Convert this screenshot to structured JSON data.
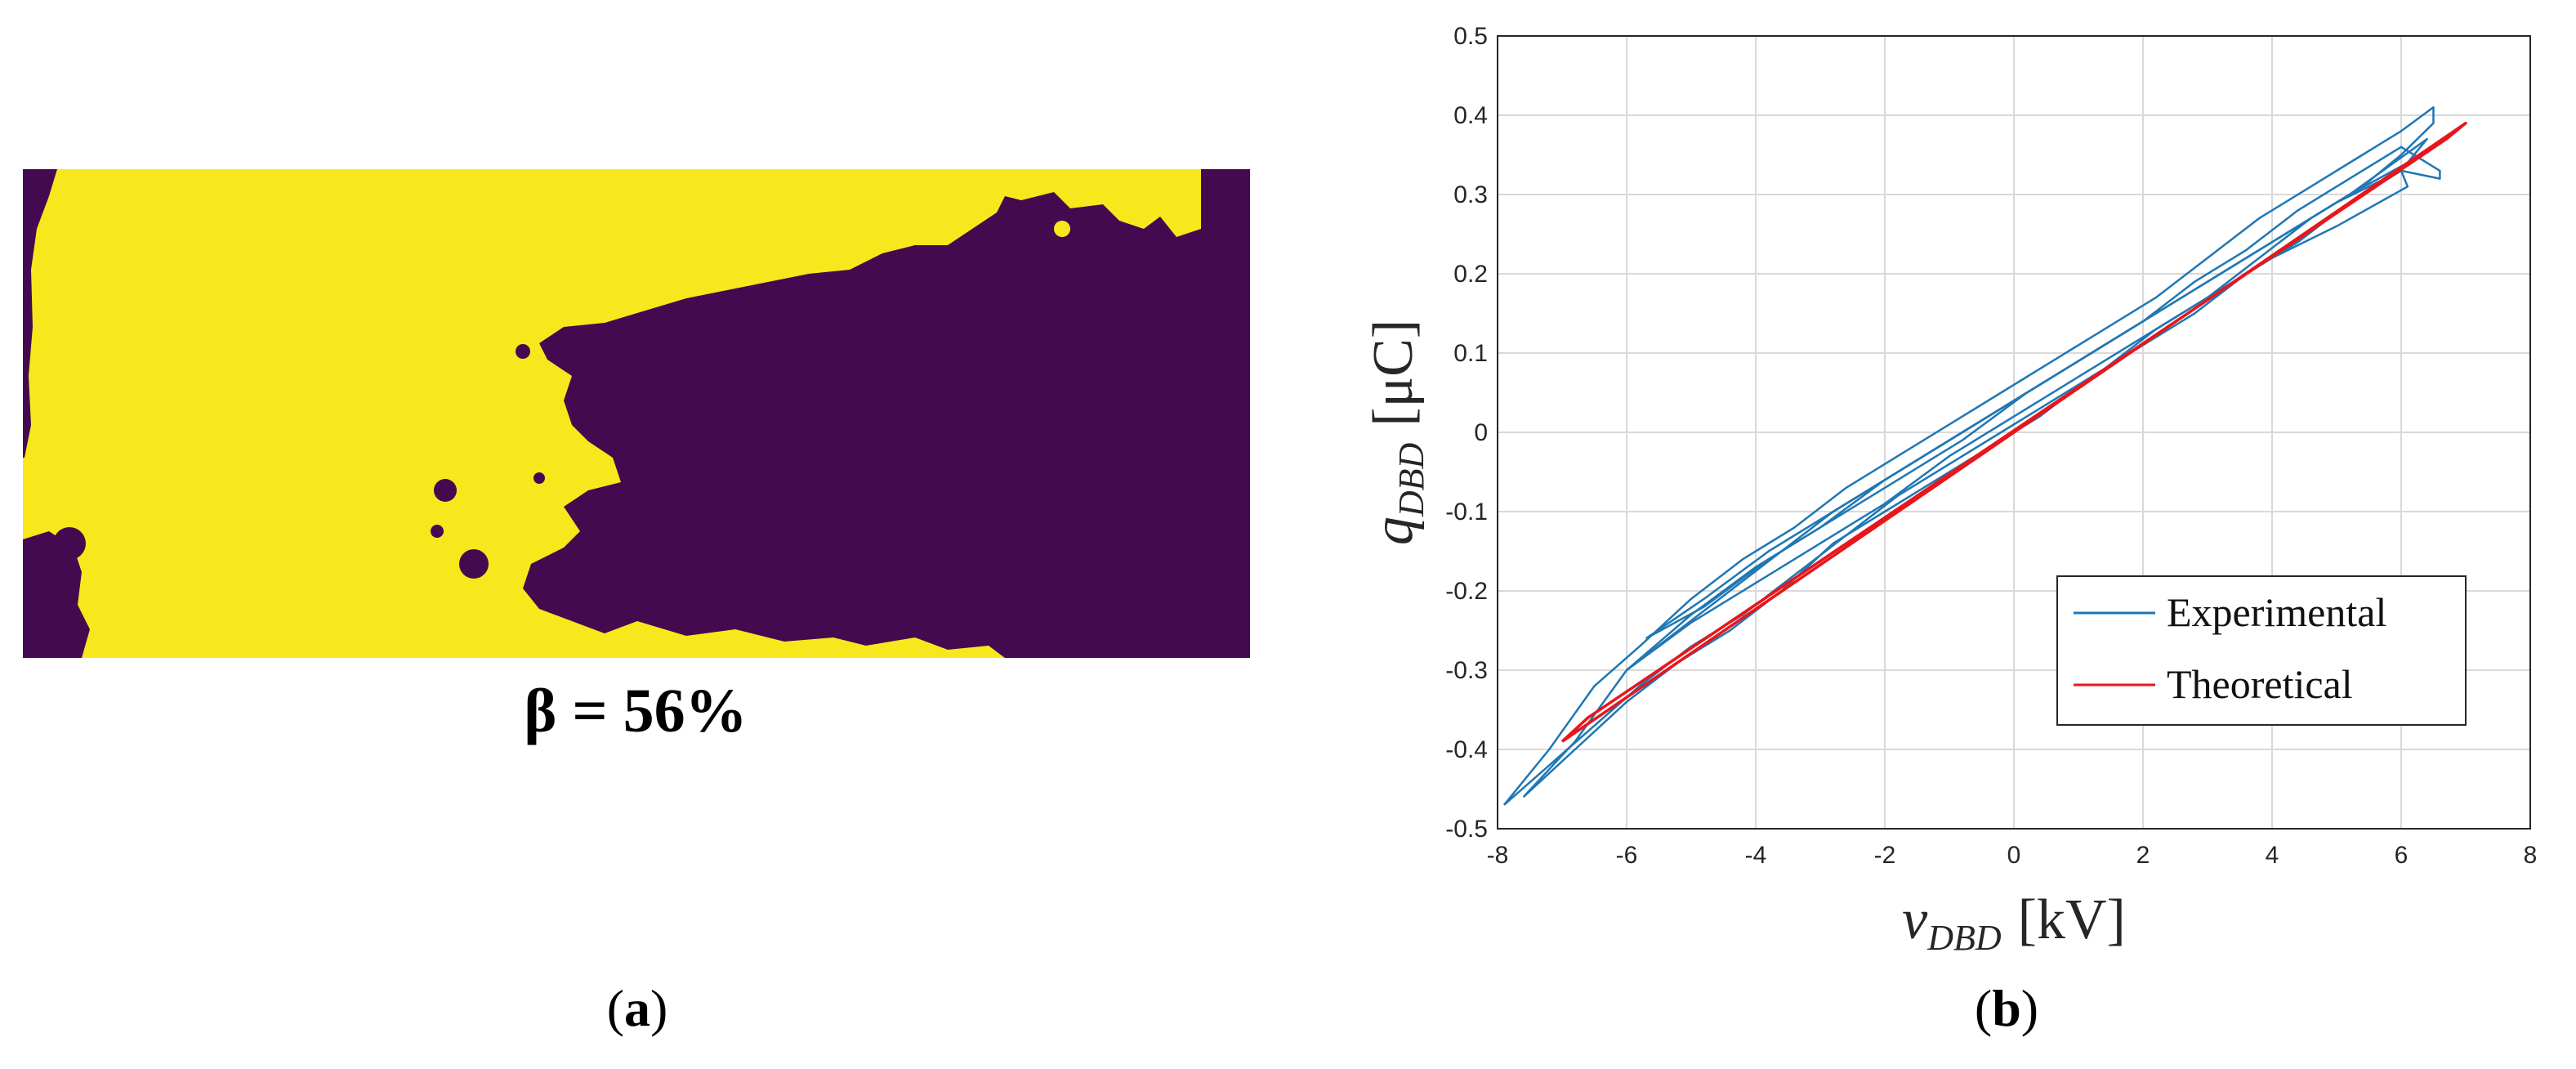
{
  "colors": {
    "mask_yellow": "#f8e71c",
    "mask_purple": "#440a4f",
    "experimental": "#1f77b4",
    "theoretical": "#e8161b",
    "grid": "#d9d9d9",
    "axis": "#262626"
  },
  "panel_a": {
    "beta_label": "β = 56%",
    "caption_open": "(",
    "caption_letter": "a",
    "caption_close": ")"
  },
  "panel_b": {
    "caption_open": "(",
    "caption_letter": "b",
    "caption_close": ")"
  },
  "chart_data": {
    "type": "line",
    "xlabel": "v_{DBD} [kV]",
    "ylabel": "q_{DBD} [μC]",
    "xlabel_main": "v",
    "xlabel_sub": "DBD",
    "xlabel_unit": "[kV]",
    "ylabel_main": "q",
    "ylabel_sub": "DBD",
    "ylabel_unit": "[μC]",
    "xlim": [
      -8,
      8
    ],
    "ylim": [
      -0.5,
      0.5
    ],
    "xticks": [
      -8,
      -6,
      -4,
      -2,
      0,
      2,
      4,
      6,
      8
    ],
    "yticks": [
      -0.5,
      -0.4,
      -0.3,
      -0.2,
      -0.1,
      0,
      0.1,
      0.2,
      0.3,
      0.4,
      0.5
    ],
    "xtick_labels": [
      "-8",
      "-6",
      "-4",
      "-2",
      "0",
      "2",
      "4",
      "6",
      "8"
    ],
    "ytick_labels": [
      "-0.5",
      "-0.4",
      "-0.3",
      "-0.2",
      "-0.1",
      "0",
      "0.1",
      "0.2",
      "0.3",
      "0.4",
      "0.5"
    ],
    "grid": true,
    "legend_position": "lower-right",
    "series": [
      {
        "name": "Experimental",
        "color": "#1f77b4",
        "loops": [
          {
            "x": [
              -7.9,
              -7.2,
              -6.5,
              -5.8,
              -5.0,
              -4.2,
              -3.4,
              -2.6,
              -1.8,
              -1.0,
              -0.2,
              0.6,
              1.4,
              2.2,
              3.0,
              3.8,
              4.6,
              5.4,
              6.0,
              6.5,
              6.5,
              6.0,
              5.4,
              4.6,
              3.8,
              3.0,
              2.2,
              1.4,
              0.6,
              -0.2,
              -1.0,
              -1.8,
              -2.6,
              -3.4,
              -4.2,
              -5.0,
              -5.8,
              -6.5,
              -7.2,
              -7.9
            ],
            "y": [
              -0.47,
              -0.4,
              -0.32,
              -0.27,
              -0.21,
              -0.16,
              -0.12,
              -0.07,
              -0.03,
              0.01,
              0.05,
              0.09,
              0.13,
              0.17,
              0.22,
              0.27,
              0.31,
              0.35,
              0.38,
              0.41,
              0.39,
              0.35,
              0.31,
              0.27,
              0.22,
              0.17,
              0.13,
              0.08,
              0.04,
              0.0,
              -0.04,
              -0.08,
              -0.13,
              -0.18,
              -0.23,
              -0.27,
              -0.32,
              -0.37,
              -0.42,
              -0.47
            ]
          },
          {
            "x": [
              -7.6,
              -6.8,
              -6.0,
              -5.2,
              -4.4,
              -3.6,
              -2.8,
              -2.0,
              -1.2,
              -0.4,
              0.4,
              1.2,
              2.0,
              2.8,
              3.6,
              4.4,
              5.2,
              6.0,
              6.6,
              6.6,
              6.0,
              5.2,
              4.4,
              3.6,
              2.8,
              2.0,
              1.2,
              0.4,
              -0.4,
              -1.2,
              -2.0,
              -2.8,
              -3.6,
              -4.4,
              -5.2,
              -6.0,
              -6.8,
              -7.6
            ],
            "y": [
              -0.46,
              -0.39,
              -0.3,
              -0.25,
              -0.2,
              -0.15,
              -0.1,
              -0.06,
              -0.02,
              0.02,
              0.06,
              0.1,
              0.14,
              0.19,
              0.23,
              0.28,
              0.32,
              0.36,
              0.33,
              0.32,
              0.33,
              0.29,
              0.24,
              0.2,
              0.15,
              0.11,
              0.07,
              0.02,
              -0.02,
              -0.06,
              -0.1,
              -0.14,
              -0.2,
              -0.25,
              -0.29,
              -0.34,
              -0.4,
              -0.46
            ]
          },
          {
            "x": [
              -6.0,
              -5.0,
              -4.0,
              -3.0,
              -2.0,
              -1.0,
              0.0,
              1.0,
              2.0,
              3.0,
              4.0,
              5.0,
              6.0,
              6.1,
              5.0,
              4.0,
              3.0,
              2.0,
              1.0,
              0.0,
              -1.0,
              -2.0,
              -3.0,
              -4.0,
              -5.0,
              -6.0
            ],
            "y": [
              -0.3,
              -0.23,
              -0.17,
              -0.12,
              -0.06,
              -0.01,
              0.04,
              0.09,
              0.14,
              0.19,
              0.24,
              0.29,
              0.33,
              0.31,
              0.26,
              0.22,
              0.17,
              0.12,
              0.07,
              0.02,
              -0.03,
              -0.09,
              -0.14,
              -0.19,
              -0.24,
              -0.3
            ]
          },
          {
            "x": [
              -5.7,
              -4.8,
              -3.8,
              -2.8,
              -1.8,
              -0.8,
              0.2,
              1.2,
              2.2,
              3.2,
              4.2,
              5.2,
              6.1,
              6.4,
              5.2,
              4.2,
              3.2,
              2.2,
              1.2,
              0.2,
              -0.8,
              -1.8,
              -2.8,
              -3.8,
              -4.8,
              -5.7
            ],
            "y": [
              -0.26,
              -0.21,
              -0.15,
              -0.1,
              -0.05,
              0.0,
              0.05,
              0.1,
              0.15,
              0.2,
              0.25,
              0.3,
              0.34,
              0.37,
              0.3,
              0.25,
              0.2,
              0.15,
              0.1,
              0.05,
              -0.01,
              -0.06,
              -0.11,
              -0.16,
              -0.22,
              -0.26
            ]
          }
        ]
      },
      {
        "name": "Theoretical",
        "color": "#e8161b",
        "loops": [
          {
            "x": [
              -7.0,
              7.0,
              6.7,
              -6.6,
              -7.0
            ],
            "y": [
              -0.39,
              0.39,
              0.37,
              -0.36,
              -0.39
            ]
          }
        ]
      }
    ]
  },
  "legend": {
    "items": [
      {
        "label": "Experimental",
        "color": "#1f77b4"
      },
      {
        "label": "Theoretical",
        "color": "#e8161b"
      }
    ]
  }
}
